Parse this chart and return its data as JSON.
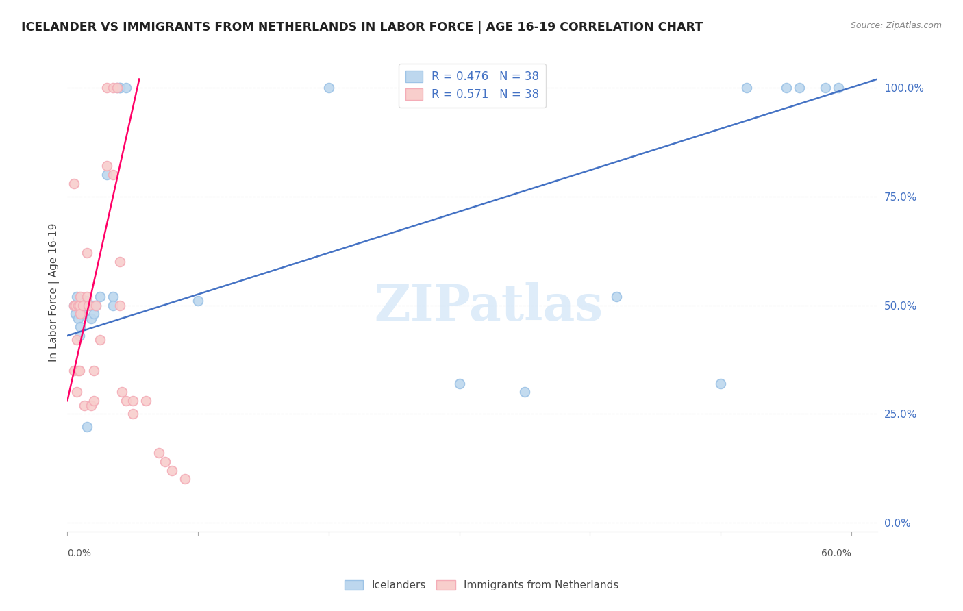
{
  "title": "ICELANDER VS IMMIGRANTS FROM NETHERLANDS IN LABOR FORCE | AGE 16-19 CORRELATION CHART",
  "source": "Source: ZipAtlas.com",
  "ylabel": "In Labor Force | Age 16-19",
  "xlim": [
    0.0,
    0.62
  ],
  "ylim": [
    -0.02,
    1.08
  ],
  "yticks": [
    0.0,
    0.25,
    0.5,
    0.75,
    1.0
  ],
  "ytick_labels": [
    "0.0%",
    "25.0%",
    "50.0%",
    "75.0%",
    "100.0%"
  ],
  "blue_face": "#BDD7EE",
  "blue_edge": "#9DC3E6",
  "pink_face": "#F8CECC",
  "pink_edge": "#F4ACB7",
  "blue_line": "#4472C4",
  "pink_line": "#FF0066",
  "blue_r": "R = 0.476",
  "blue_n": "N = 38",
  "pink_r": "R = 0.571",
  "pink_n": "N = 38",
  "blue_x": [
    0.005,
    0.006,
    0.007,
    0.008,
    0.009,
    0.009,
    0.01,
    0.01,
    0.01,
    0.012,
    0.012,
    0.013,
    0.015,
    0.015,
    0.016,
    0.018,
    0.02,
    0.02,
    0.022,
    0.025,
    0.03,
    0.035,
    0.035,
    0.038,
    0.04,
    0.04,
    0.045,
    0.1,
    0.2,
    0.3,
    0.35,
    0.42,
    0.5,
    0.52,
    0.55,
    0.56,
    0.58,
    0.59
  ],
  "blue_y": [
    0.5,
    0.48,
    0.52,
    0.47,
    0.43,
    0.5,
    0.5,
    0.48,
    0.45,
    0.5,
    0.48,
    0.5,
    0.22,
    0.51,
    0.5,
    0.47,
    0.5,
    0.48,
    0.5,
    0.52,
    0.8,
    0.52,
    0.5,
    1.0,
    1.0,
    1.0,
    1.0,
    0.51,
    1.0,
    0.32,
    0.3,
    0.52,
    0.32,
    1.0,
    1.0,
    1.0,
    1.0,
    1.0
  ],
  "pink_x": [
    0.005,
    0.005,
    0.005,
    0.006,
    0.007,
    0.007,
    0.008,
    0.008,
    0.009,
    0.009,
    0.01,
    0.01,
    0.012,
    0.013,
    0.015,
    0.015,
    0.016,
    0.018,
    0.02,
    0.02,
    0.022,
    0.025,
    0.03,
    0.03,
    0.035,
    0.035,
    0.038,
    0.04,
    0.04,
    0.042,
    0.045,
    0.05,
    0.05,
    0.06,
    0.07,
    0.075,
    0.08,
    0.09
  ],
  "pink_y": [
    0.78,
    0.5,
    0.35,
    0.5,
    0.42,
    0.3,
    0.5,
    0.35,
    0.5,
    0.35,
    0.52,
    0.48,
    0.5,
    0.27,
    0.62,
    0.52,
    0.5,
    0.27,
    0.35,
    0.28,
    0.5,
    0.42,
    1.0,
    0.82,
    1.0,
    0.8,
    1.0,
    0.6,
    0.5,
    0.3,
    0.28,
    0.28,
    0.25,
    0.28,
    0.16,
    0.14,
    0.12,
    0.1
  ],
  "blue_trendline_x": [
    0.0,
    0.62
  ],
  "blue_trendline_y": [
    0.43,
    1.02
  ],
  "pink_trendline_x": [
    0.0,
    0.055
  ],
  "pink_trendline_y": [
    0.28,
    1.02
  ],
  "watermark_text": "ZIPatlas",
  "watermark_color": "#D0E4F7",
  "marker_size": 100
}
